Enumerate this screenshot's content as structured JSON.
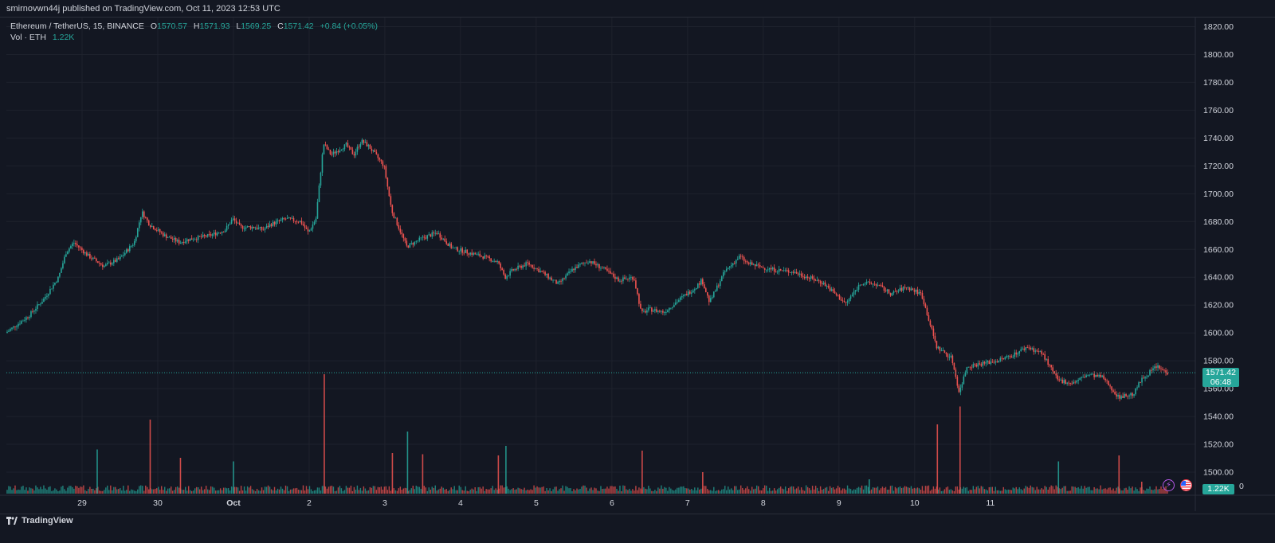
{
  "header": {
    "published": "smirnovwn44j published on TradingView.com, Oct 11, 2023 12:53 UTC"
  },
  "legend": {
    "symbol": "Ethereum / TetherUS, 15, BINANCE",
    "o_label": "O",
    "o": "1570.57",
    "h_label": "H",
    "h": "1571.93",
    "l_label": "L",
    "l": "1569.25",
    "c_label": "C",
    "c": "1571.42",
    "change": "+0.84 (+0.05%)",
    "vol_label": "Vol · ETH",
    "vol": "1.22K"
  },
  "price_tag": {
    "price": "1571.42",
    "countdown": "06:48"
  },
  "volume_tag": "1.22K",
  "brand": "TradingView",
  "colors": {
    "up": "#26a69a",
    "down": "#ef5350",
    "background": "#131722",
    "grid": "#1e222d",
    "axis_text": "#d1d4dc"
  },
  "icons": [
    "lightning-icon",
    "us-flag-icon",
    "tradingview-logo-icon"
  ],
  "chart_data": {
    "type": "candlestick",
    "title": "",
    "xlabel": "",
    "ylabel": "",
    "ylim": [
      1488,
      1822
    ],
    "y_ticks": [
      "1820.00",
      "1800.00",
      "1780.00",
      "1760.00",
      "1740.00",
      "1720.00",
      "1700.00",
      "1680.00",
      "1660.00",
      "1640.00",
      "1620.00",
      "1600.00",
      "1580.00",
      "1560.00",
      "1540.00",
      "1520.00",
      "1500.00"
    ],
    "volume_zero_label": "0",
    "x_ticks": [
      {
        "label": "29",
        "day": 28.5
      },
      {
        "label": "30",
        "day": 29.5
      },
      {
        "label": "Oct",
        "day": 30.5
      },
      {
        "label": "2",
        "day": 31.5
      },
      {
        "label": "3",
        "day": 32.5
      },
      {
        "label": "4",
        "day": 33.5
      },
      {
        "label": "5",
        "day": 34.5
      },
      {
        "label": "6",
        "day": 35.5
      },
      {
        "label": "7",
        "day": 36.5
      },
      {
        "label": "8",
        "day": 37.5
      },
      {
        "label": "9",
        "day": 38.5
      },
      {
        "label": "10",
        "day": 39.5
      },
      {
        "label": "11",
        "day": 40.5
      }
    ],
    "price_path": [
      [
        27.5,
        1600
      ],
      [
        27.8,
        1612
      ],
      [
        28.0,
        1624
      ],
      [
        28.2,
        1640
      ],
      [
        28.3,
        1658
      ],
      [
        28.4,
        1665
      ],
      [
        28.6,
        1655
      ],
      [
        28.8,
        1648
      ],
      [
        29.0,
        1653
      ],
      [
        29.2,
        1665
      ],
      [
        29.3,
        1687
      ],
      [
        29.4,
        1678
      ],
      [
        29.6,
        1670
      ],
      [
        29.8,
        1665
      ],
      [
        29.9,
        1667
      ],
      [
        30.0,
        1668
      ],
      [
        30.2,
        1670
      ],
      [
        30.4,
        1674
      ],
      [
        30.5,
        1682
      ],
      [
        30.6,
        1676
      ],
      [
        30.8,
        1676
      ],
      [
        30.9,
        1674
      ],
      [
        31.0,
        1678
      ],
      [
        31.2,
        1682
      ],
      [
        31.4,
        1680
      ],
      [
        31.5,
        1672
      ],
      [
        31.6,
        1682
      ],
      [
        31.7,
        1736
      ],
      [
        31.8,
        1728
      ],
      [
        32.0,
        1735
      ],
      [
        32.1,
        1728
      ],
      [
        32.2,
        1738
      ],
      [
        32.3,
        1734
      ],
      [
        32.5,
        1720
      ],
      [
        32.6,
        1688
      ],
      [
        32.8,
        1662
      ],
      [
        33.0,
        1668
      ],
      [
        33.2,
        1672
      ],
      [
        33.4,
        1661
      ],
      [
        33.6,
        1658
      ],
      [
        33.8,
        1655
      ],
      [
        34.0,
        1651
      ],
      [
        34.1,
        1640
      ],
      [
        34.2,
        1645
      ],
      [
        34.4,
        1650
      ],
      [
        34.6,
        1643
      ],
      [
        34.8,
        1635
      ],
      [
        35.0,
        1646
      ],
      [
        35.2,
        1652
      ],
      [
        35.4,
        1646
      ],
      [
        35.6,
        1638
      ],
      [
        35.8,
        1640
      ],
      [
        35.9,
        1614
      ],
      [
        36.0,
        1617
      ],
      [
        36.2,
        1615
      ],
      [
        36.4,
        1624
      ],
      [
        36.6,
        1632
      ],
      [
        36.7,
        1638
      ],
      [
        36.8,
        1622
      ],
      [
        37.0,
        1644
      ],
      [
        37.2,
        1655
      ],
      [
        37.3,
        1650
      ],
      [
        37.5,
        1647
      ],
      [
        37.7,
        1645
      ],
      [
        37.9,
        1644
      ],
      [
        38.1,
        1640
      ],
      [
        38.3,
        1636
      ],
      [
        38.5,
        1626
      ],
      [
        38.6,
        1621
      ],
      [
        38.8,
        1636
      ],
      [
        39.0,
        1635
      ],
      [
        39.2,
        1628
      ],
      [
        39.4,
        1633
      ],
      [
        39.6,
        1628
      ],
      [
        39.8,
        1590
      ],
      [
        40.0,
        1582
      ],
      [
        40.1,
        1557
      ],
      [
        40.2,
        1576
      ],
      [
        40.4,
        1578
      ],
      [
        40.6,
        1580
      ],
      [
        40.8,
        1584
      ],
      [
        41.0,
        1590
      ],
      [
        41.2,
        1585
      ],
      [
        41.4,
        1566
      ],
      [
        41.6,
        1564
      ],
      [
        41.8,
        1570
      ],
      [
        42.0,
        1568
      ],
      [
        42.2,
        1554
      ],
      [
        42.4,
        1556
      ],
      [
        42.5,
        1566
      ],
      [
        42.7,
        1576
      ],
      [
        42.85,
        1571.42
      ]
    ],
    "volume_spikes": [
      {
        "day": 28.7,
        "value": 0.37
      },
      {
        "day": 29.4,
        "value": 0.62
      },
      {
        "day": 29.8,
        "value": 0.3
      },
      {
        "day": 30.5,
        "value": 0.27
      },
      {
        "day": 31.7,
        "value": 1.0
      },
      {
        "day": 32.6,
        "value": 0.34
      },
      {
        "day": 32.8,
        "value": 0.52
      },
      {
        "day": 33.0,
        "value": 0.33
      },
      {
        "day": 34.0,
        "value": 0.32
      },
      {
        "day": 34.1,
        "value": 0.4
      },
      {
        "day": 35.9,
        "value": 0.36
      },
      {
        "day": 36.7,
        "value": 0.18
      },
      {
        "day": 38.9,
        "value": 0.12
      },
      {
        "day": 39.8,
        "value": 0.58
      },
      {
        "day": 40.1,
        "value": 0.73
      },
      {
        "day": 41.4,
        "value": 0.27
      },
      {
        "day": 42.2,
        "value": 0.32
      },
      {
        "day": 42.5,
        "value": 0.1
      }
    ]
  }
}
